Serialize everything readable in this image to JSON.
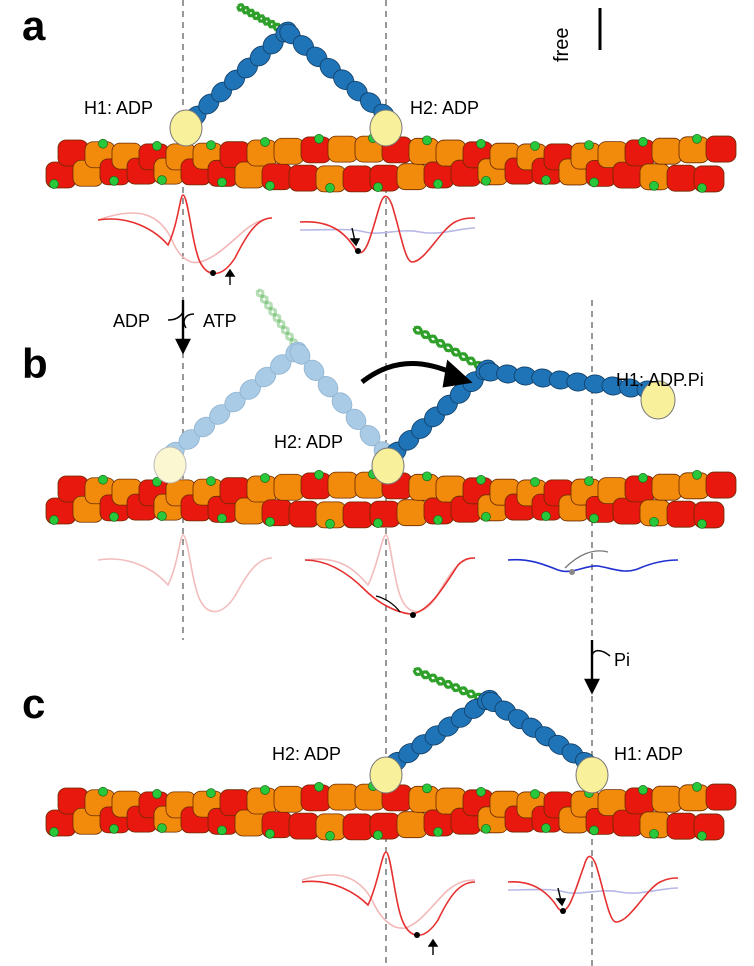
{
  "panels": {
    "a": {
      "letter": "a",
      "scale_label": "free",
      "labels": {
        "h1": "H1: ADP",
        "h2": "H2: ADP"
      },
      "arrow_labels": {
        "left": "ADP",
        "right": "ATP"
      }
    },
    "b": {
      "letter": "b",
      "labels": {
        "h2": "H2: ADP",
        "h1": "H1: ADP.Pi"
      },
      "arrow_labels": {
        "right": "Pi"
      }
    },
    "c": {
      "letter": "c",
      "labels": {
        "h2": "H2: ADP",
        "h1": "H1: ADP"
      }
    }
  },
  "colors": {
    "actin_red": "#e8180f",
    "actin_orange": "#f28a0c",
    "binding_site_green": "#28c83a",
    "lever_blue": "#1f73b7",
    "lever_faded": "#a9cbe6",
    "head_yellow": "#f8f09a",
    "coil_green": "#2fa02a",
    "energy_red": "#e63030",
    "energy_blue": "#2030d0",
    "energy_faded": "#b7b7e6"
  }
}
